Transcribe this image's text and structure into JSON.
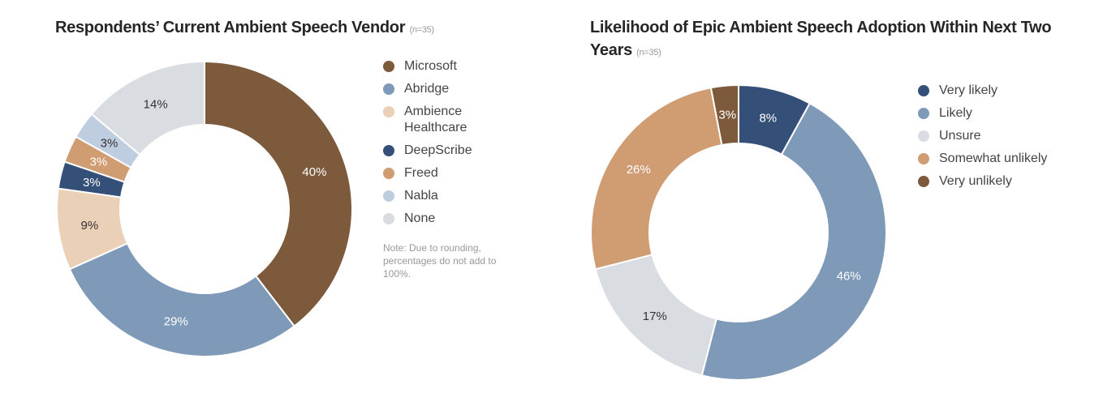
{
  "chart_data": [
    {
      "type": "pie",
      "style": "donut",
      "title": "Respondents’ Current Ambient Speech Vendor",
      "sample_size": "(n=35)",
      "categories": [
        "Microsoft",
        "Abridge",
        "Ambience Healthcare",
        "DeepScribe",
        "Freed",
        "Nabla",
        "None"
      ],
      "values": [
        40,
        29,
        9,
        3,
        3,
        3,
        14
      ],
      "labels": [
        "40%",
        "29%",
        "9%",
        "3%",
        "3%",
        "3%",
        "14%"
      ],
      "colors": [
        "#7d5a3c",
        "#7f9ab8",
        "#ead0b6",
        "#344f78",
        "#d09c72",
        "#bfcde0",
        "#d9dce0"
      ],
      "label_colors": [
        "#ffffff",
        "#ffffff",
        "#333333",
        "#ffffff",
        "#ffffff",
        "#333333",
        "#333333"
      ],
      "legend_position": "right",
      "note": "Note: Due to rounding, percentages do not add to 100%."
    },
    {
      "type": "pie",
      "style": "donut",
      "title": "Likelihood of Epic Ambient Speech Adoption Within Next Two Years",
      "sample_size": "(n=35)",
      "categories": [
        "Very likely",
        "Likely",
        "Unsure",
        "Somewhat unlikely",
        "Very unlikely"
      ],
      "values": [
        8,
        46,
        17,
        26,
        3
      ],
      "labels": [
        "8%",
        "46%",
        "17%",
        "26%",
        "3%"
      ],
      "colors": [
        "#344f78",
        "#7f9ab8",
        "#d9dce0",
        "#d09c72",
        "#7d5a3c"
      ],
      "label_colors": [
        "#ffffff",
        "#ffffff",
        "#333333",
        "#ffffff",
        "#ffffff"
      ],
      "legend_position": "right"
    }
  ]
}
